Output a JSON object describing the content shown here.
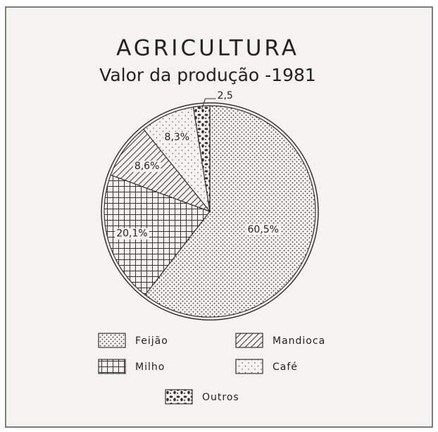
{
  "chart_data": {
    "type": "pie",
    "title": "AGRICULTURA",
    "subtitle": "Valor da produção -1981",
    "categories": [
      "Feijão",
      "Milho",
      "Mandioca",
      "Café",
      "Outros"
    ],
    "values": [
      60.5,
      20.1,
      8.6,
      8.3,
      2.5
    ],
    "value_labels": [
      "60,5%",
      "20,1%",
      "8,6%",
      "8,3%",
      "2,5"
    ]
  }
}
